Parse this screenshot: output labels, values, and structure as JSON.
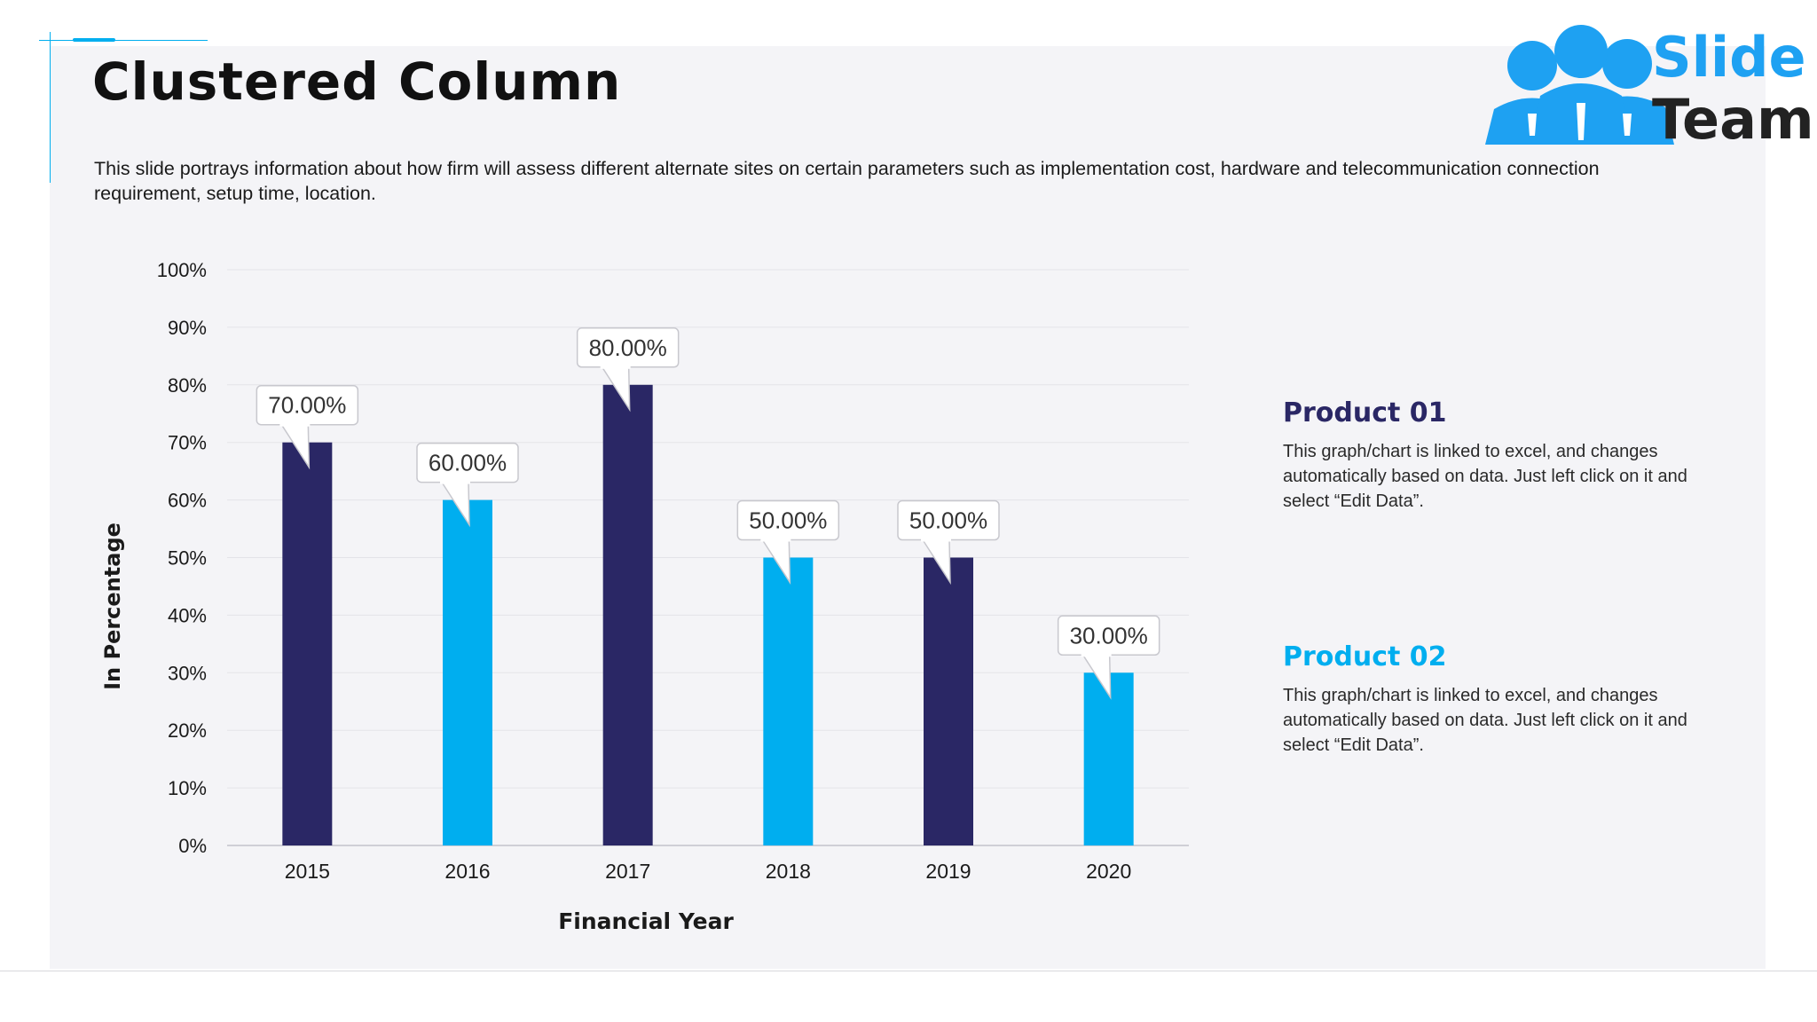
{
  "title": "Clustered Column",
  "description": "This slide portrays information about how firm will assess different alternate sites on certain parameters such as implementation cost, hardware and telecommunication connection requirement, setup time, location.",
  "logo": {
    "line1": "Slide",
    "line2": "Team"
  },
  "colors": {
    "product01": "#2a2765",
    "product02": "#00aeef",
    "accent": "#00aeef"
  },
  "legend": [
    {
      "title": "Product 01",
      "text": "This graph/chart is linked to excel, and changes automatically based on data. Just left click on it and select “Edit Data”."
    },
    {
      "title": "Product 02",
      "text": "This graph/chart is linked to excel, and changes automatically based on data. Just left click on it and select “Edit Data”."
    }
  ],
  "chart_data": {
    "type": "bar",
    "categories": [
      "2015",
      "2016",
      "2017",
      "2018",
      "2019",
      "2020"
    ],
    "values": [
      70,
      60,
      80,
      50,
      50,
      30
    ],
    "series_of_bar": [
      "Product 01",
      "Product 02",
      "Product 01",
      "Product 02",
      "Product 01",
      "Product 02"
    ],
    "data_labels": [
      "70.00%",
      "60.00%",
      "80.00%",
      "50.00%",
      "50.00%",
      "30.00%"
    ],
    "yticks": [
      "0%",
      "10%",
      "20%",
      "30%",
      "40%",
      "50%",
      "60%",
      "70%",
      "80%",
      "90%",
      "100%"
    ],
    "xlabel": "Financial Year",
    "ylabel": "In Percentage",
    "ylim": [
      0,
      100
    ],
    "grid": true
  }
}
